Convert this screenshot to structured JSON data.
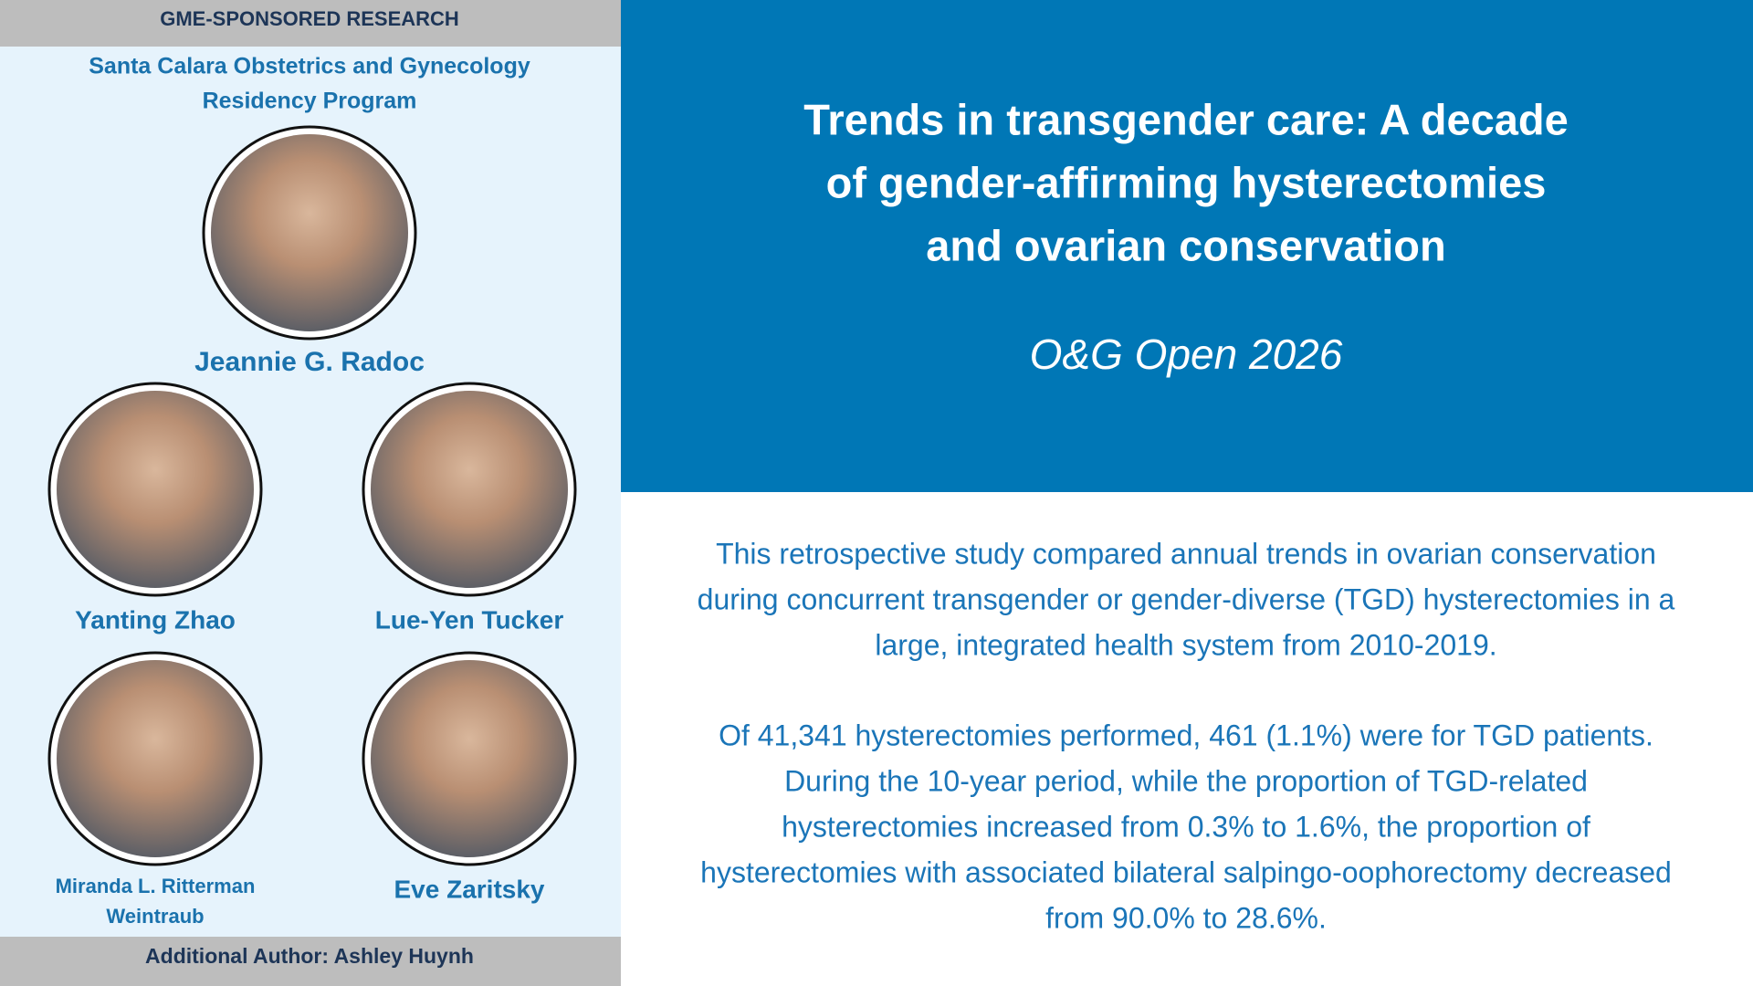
{
  "header": {
    "label": "GME-SPONSORED RESEARCH",
    "program": [
      "Santa Calara Obstetrics and Gynecology",
      "Residency Program"
    ]
  },
  "authors": [
    {
      "name": [
        "Jeannie G. Radoc"
      ]
    },
    {
      "name": [
        "Yanting Zhao"
      ]
    },
    {
      "name": [
        "Lue-Yen Tucker"
      ]
    },
    {
      "name": [
        "Miranda L. Ritterman",
        "Weintraub"
      ]
    },
    {
      "name": [
        "Eve Zaritsky"
      ]
    }
  ],
  "additional_author": "Additional Author: Ashley Huynh",
  "title": [
    "Trends in transgender care: A decade",
    "of gender-affirming hysterectomies",
    "and ovarian conservation"
  ],
  "journal": "O&G Open 2026",
  "paragraphs": [
    [
      "This retrospective study compared annual trends in ovarian conservation",
      "during concurrent transgender or gender-diverse (TGD) hysterectomies in a",
      "large, integrated health system from 2010-2019."
    ],
    [
      "Of 41,341 hysterectomies performed, 461 (1.1%) were for TGD patients.",
      "During the 10-year period, while the proportion of TGD-related",
      "hysterectomies increased from 0.3% to 1.6%, the proportion of",
      "hysterectomies with associated bilateral salpingo-oophorectomy decreased",
      "from 90.0% to 28.6%."
    ]
  ]
}
